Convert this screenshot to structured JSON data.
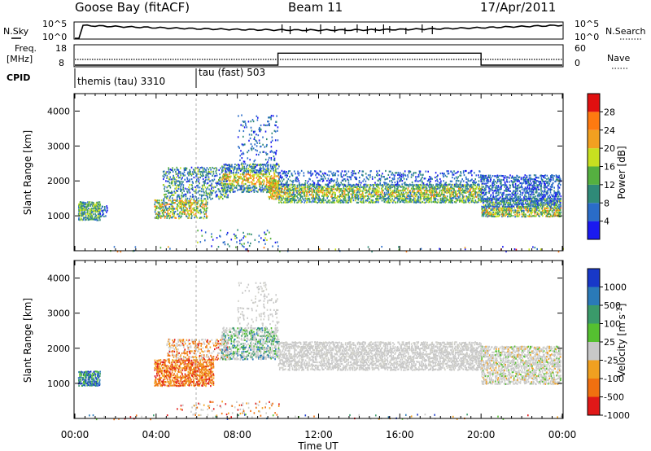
{
  "header": {
    "title": "Goose Bay (fitACF)",
    "beam": "Beam 11",
    "date": "17/Apr/2011"
  },
  "noise_panel": {
    "left_label": "N.Sky",
    "right_label": "N.Search",
    "left_ticks": [
      "10^5",
      "10^0"
    ],
    "right_ticks": [
      "10^5",
      "10^0"
    ]
  },
  "freq_panel": {
    "left_label_1": "Freq.",
    "left_label_2": "[MHz]",
    "left_ticks": [
      "18",
      "8"
    ],
    "right_label": "Nave",
    "right_ticks": [
      "60",
      "0"
    ],
    "nave_levels": [
      {
        "from_hour": 0,
        "to_hour": 10,
        "value": 0
      },
      {
        "from_hour": 10,
        "to_hour": 20,
        "value": 40
      },
      {
        "from_hour": 20,
        "to_hour": 24,
        "value": 0
      }
    ]
  },
  "cpid": {
    "label": "CPID",
    "segments": [
      {
        "label": "themis (tau) 3310",
        "start_hour": 0
      },
      {
        "label": "tau (fast) 503",
        "start_hour": 6
      }
    ]
  },
  "chart_data": [
    {
      "type": "heatmap",
      "name": "Power",
      "ylabel": "Slant Range [km]",
      "xlabel": "Time UT",
      "ylim": [
        0,
        4500
      ],
      "xlim": [
        0,
        24
      ],
      "yticks": [
        "1000",
        "2000",
        "3000",
        "4000"
      ],
      "colorbar": {
        "label": "Power [dB]",
        "ticks": [
          "4",
          "8",
          "12",
          "16",
          "20",
          "24",
          "28"
        ],
        "colors": [
          "#1a1af0",
          "#2a6cc8",
          "#2f8a78",
          "#55b040",
          "#c8e020",
          "#f2a020",
          "#ff7a10",
          "#e01010"
        ]
      }
    },
    {
      "type": "heatmap",
      "name": "Velocity",
      "ylabel": "Slant Range [km]",
      "xlabel": "Time UT",
      "ylim": [
        0,
        4500
      ],
      "xlim": [
        0,
        24
      ],
      "yticks": [
        "1000",
        "2000",
        "3000",
        "4000"
      ],
      "colorbar": {
        "label": "Velocity [m s^-1]",
        "ticks": [
          "1000",
          "500",
          "100",
          "25",
          "-25",
          "-100",
          "-500",
          "-1000"
        ],
        "colors": [
          "#1838c8",
          "#2a7ab8",
          "#3a9a6a",
          "#55c030",
          "#c8c8c8",
          "#f0a020",
          "#f07010",
          "#e01818"
        ]
      }
    }
  ],
  "x_axis": {
    "label": "Time UT",
    "ticks": [
      "00:00",
      "04:00",
      "08:00",
      "12:00",
      "16:00",
      "20:00",
      "00:00"
    ]
  }
}
